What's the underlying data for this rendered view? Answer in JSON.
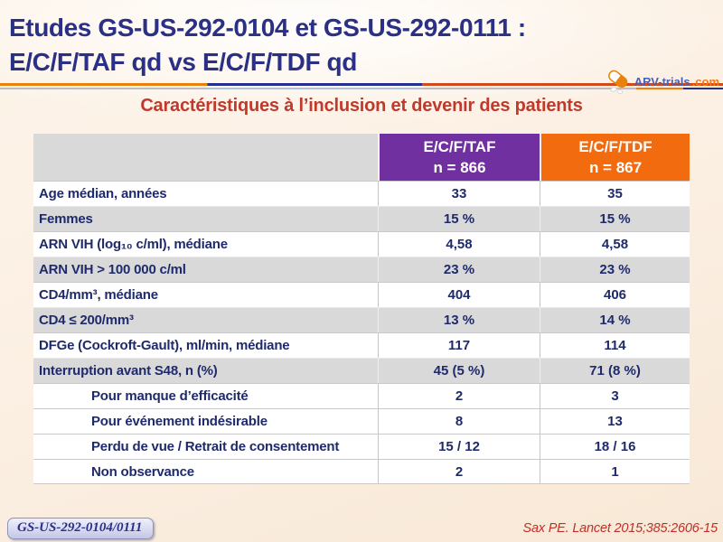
{
  "title": {
    "line1": "Etudes GS-US-292-0104 et GS-US-292-0111 :",
    "line2": "E/C/F/TAF qd vs E/C/F/TDF qd"
  },
  "logo": {
    "name": "ARV-trials",
    "tld": ".com",
    "icon": "pill-icon"
  },
  "subtitle": "Caractéristiques à l’inclusion et devenir des patients",
  "table": {
    "header": {
      "taf_line1": "E/C/F/TAF",
      "taf_line2": "n = 866",
      "tdf_line1": "E/C/F/TDF",
      "tdf_line2": "n = 867"
    },
    "rows": [
      {
        "label": "Age médian, années",
        "taf": "33",
        "tdf": "35",
        "shade": false,
        "indent": false
      },
      {
        "label": "Femmes",
        "taf": "15 %",
        "tdf": "15 %",
        "shade": true,
        "indent": false
      },
      {
        "label": "ARN VIH (log₁₀ c/ml), médiane",
        "taf": "4,58",
        "tdf": "4,58",
        "shade": false,
        "indent": false
      },
      {
        "label": "ARN VIH > 100 000 c/ml",
        "taf": "23 %",
        "tdf": "23 %",
        "shade": true,
        "indent": false
      },
      {
        "label": "CD4/mm³, médiane",
        "taf": "404",
        "tdf": "406",
        "shade": false,
        "indent": false
      },
      {
        "label": "CD4 ≤ 200/mm³",
        "taf": "13 %",
        "tdf": "14 %",
        "shade": true,
        "indent": false
      },
      {
        "label": "DFGe (Cockroft-Gault), ml/min, médiane",
        "taf": "117",
        "tdf": "114",
        "shade": false,
        "indent": false
      },
      {
        "label": "Interruption avant S48, n (%)",
        "taf": "45 (5 %)",
        "tdf": "71 (8 %)",
        "shade": true,
        "indent": false
      },
      {
        "label": "Pour manque d’efficacité",
        "taf": "2",
        "tdf": "3",
        "shade": false,
        "indent": true
      },
      {
        "label": "Pour événement indésirable",
        "taf": "8",
        "tdf": "13",
        "shade": false,
        "indent": true
      },
      {
        "label": "Perdu de vue / Retrait de consentement",
        "taf": "15 / 12",
        "tdf": "18 / 16",
        "shade": false,
        "indent": true
      },
      {
        "label": "Non observance",
        "taf": "2",
        "tdf": "1",
        "shade": false,
        "indent": true
      }
    ]
  },
  "footer": {
    "badge": "GS-US-292-0104/0111",
    "reference": "Sax PE. Lancet 2015;385:2606-15"
  },
  "colors": {
    "title_blue": "#2B3087",
    "subtitle_red": "#C0392B",
    "taf_purple": "#7030A0",
    "tdf_orange": "#F26B0F",
    "row_shade_gray": "#D9D9D9",
    "cell_text_navy": "#1F2A6B",
    "reference_red": "#C03028",
    "background_cream": "#FBEFE2"
  }
}
